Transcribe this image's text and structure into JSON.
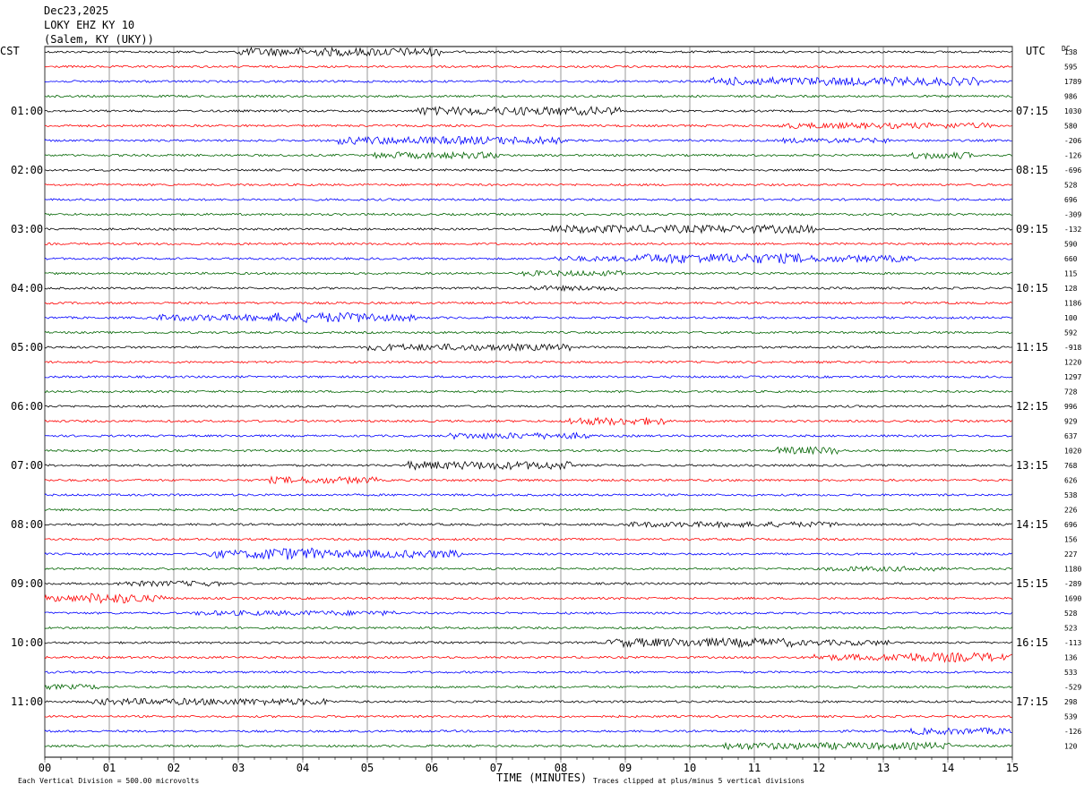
{
  "header": {
    "date": "Dec23,2025",
    "station": "LOKY EHZ KY 10",
    "location": "(Salem, KY (UKY))"
  },
  "left_axis_title": "CST",
  "right_axis_title": "UTC",
  "dc_title": "DC",
  "footer": {
    "x_axis_title": "TIME (MINUTES)",
    "scale_note": "Each Vertical Division =  500.00 microvolts",
    "clip_note": "Traces clipped at plus/minus 5 vertical divisions"
  },
  "colors": {
    "trace_cycle": [
      "#000000",
      "#ff0000",
      "#0000ff",
      "#006400"
    ],
    "grid": "#000000"
  },
  "chart_data": {
    "type": "seismogram-helicorder",
    "x_range": [
      0,
      15
    ],
    "x_unit": "minutes",
    "x_tick_labels": [
      "00",
      "01",
      "02",
      "03",
      "04",
      "05",
      "06",
      "07",
      "08",
      "09",
      "10",
      "11",
      "12",
      "13",
      "14",
      "15"
    ],
    "rows_per_hour": 4,
    "row_count": 48,
    "hour_labels_cst": [
      "01:00",
      "02:00",
      "03:00",
      "04:00",
      "05:00",
      "06:00",
      "07:00",
      "08:00",
      "09:00",
      "10:00",
      "11:00"
    ],
    "hour_labels_utc": [
      "07:15",
      "08:15",
      "09:15",
      "10:15",
      "11:15",
      "12:15",
      "13:15",
      "14:15",
      "15:15",
      "16:15",
      "17:15"
    ],
    "hour_label_first_row": 4,
    "dc_offsets": [
      "138",
      "595",
      "1789",
      "986",
      "1030",
      "580",
      "-206",
      "-126",
      "-696",
      "528",
      "696",
      "-309",
      "-132",
      "590",
      "660",
      "115",
      "128",
      "1186",
      "100",
      "592",
      "-918",
      "1220",
      "1297",
      "728",
      "996",
      "929",
      "637",
      "1020",
      "768",
      "626",
      "538",
      "226",
      "696",
      "156",
      "227",
      "1180",
      "-289",
      "1690",
      "528",
      "523",
      "-113",
      "136",
      "533",
      "-529",
      "298",
      "539",
      "-126",
      "120"
    ]
  }
}
